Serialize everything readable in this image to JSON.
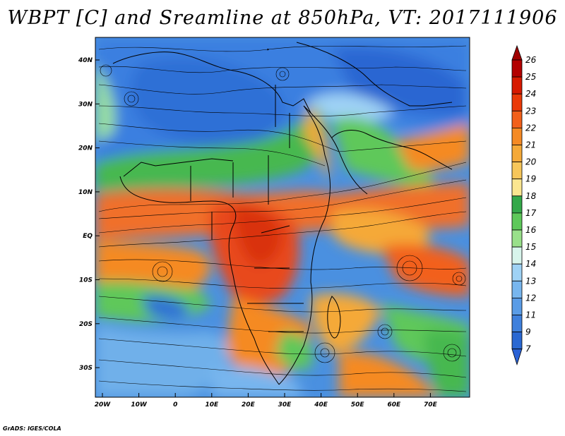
{
  "title": "WBPT [C] and Sreamline at 850hPa, VT: 2017111906",
  "credit": "GrADS: IGES/COLA",
  "lat_labels": [
    "40N",
    "30N",
    "20N",
    "10N",
    "EQ",
    "10S",
    "20S",
    "30S"
  ],
  "lon_labels": [
    "20W",
    "10W",
    "0",
    "10E",
    "20E",
    "30E",
    "40E",
    "50E",
    "60E",
    "70E"
  ],
  "colorbar": {
    "labels": [
      "26",
      "25",
      "24",
      "23",
      "22",
      "21",
      "20",
      "19",
      "18",
      "17",
      "16",
      "15",
      "14",
      "13",
      "12",
      "11",
      "9",
      "7"
    ],
    "colors": [
      "#b30000",
      "#d71a00",
      "#ea3a08",
      "#f2601a",
      "#f58a24",
      "#f5a938",
      "#f7c65a",
      "#fbe690",
      "#34a84a",
      "#5ec85a",
      "#99e08a",
      "#d8f5ec",
      "#9fd2f5",
      "#78b6ee",
      "#5a9ce6",
      "#3f80dc",
      "#2a68d2"
    ],
    "top_arrow_color": "#a00000",
    "bottom_arrow_color": "#2a62d6"
  }
}
